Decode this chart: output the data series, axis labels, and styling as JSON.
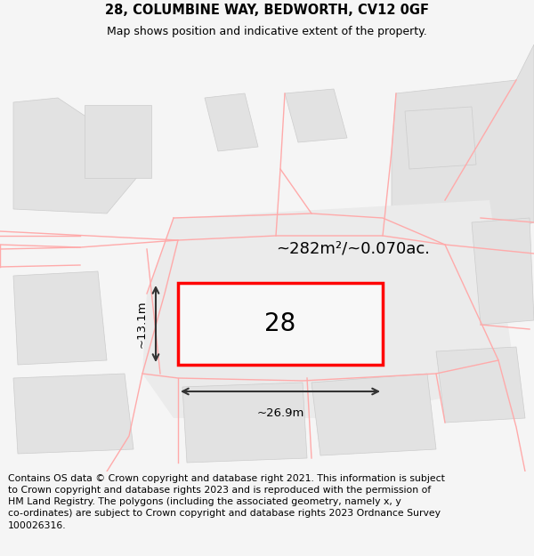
{
  "title_line1": "28, COLUMBINE WAY, BEDWORTH, CV12 0GF",
  "title_line2": "Map shows position and indicative extent of the property.",
  "footer_text": "Contains OS data © Crown copyright and database right 2021. This information is subject to Crown copyright and database rights 2023 and is reproduced with the permission of HM Land Registry. The polygons (including the associated geometry, namely x, y co-ordinates) are subject to Crown copyright and database rights 2023 Ordnance Survey 100026316.",
  "area_label": "~282m²/~0.070ac.",
  "number_label": "28",
  "width_label": "~26.9m",
  "height_label": "~13.1m",
  "bg_color": "#f5f5f5",
  "map_bg": "#ffffff",
  "gray_fill": "#e2e2e2",
  "red_line": "#ff0000",
  "pink_line": "#ffaaaa",
  "dark_line": "#333333",
  "title_fontsize": 10.5,
  "subtitle_fontsize": 9,
  "footer_fontsize": 7.8
}
